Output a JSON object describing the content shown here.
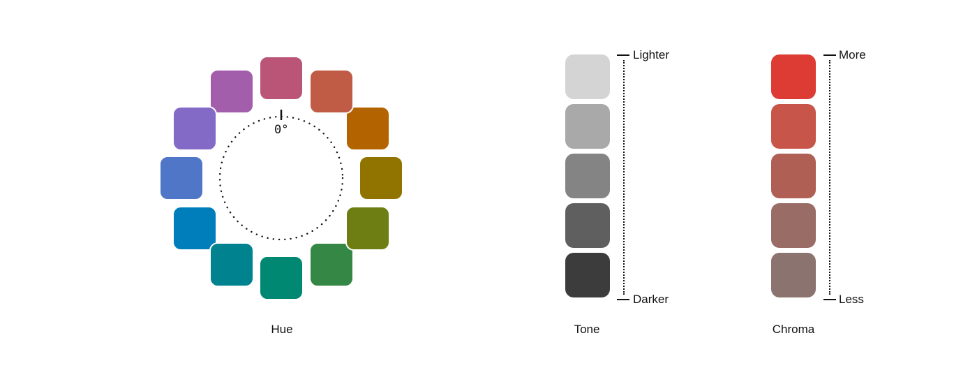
{
  "hue": {
    "caption": "Hue",
    "zero_label": "0°",
    "swatches": [
      {
        "name": "red-pink",
        "color": "#BA5577"
      },
      {
        "name": "red-orange",
        "color": "#C05B45"
      },
      {
        "name": "orange",
        "color": "#B36400"
      },
      {
        "name": "olive-yellow",
        "color": "#917400"
      },
      {
        "name": "olive-green",
        "color": "#6E7E13"
      },
      {
        "name": "green",
        "color": "#348744"
      },
      {
        "name": "teal-green",
        "color": "#008873"
      },
      {
        "name": "teal",
        "color": "#00838F"
      },
      {
        "name": "blue",
        "color": "#007EBB"
      },
      {
        "name": "periwinkle",
        "color": "#5077C7"
      },
      {
        "name": "violet",
        "color": "#836AC6"
      },
      {
        "name": "purple",
        "color": "#A25EAA"
      }
    ]
  },
  "tone": {
    "caption": "Tone",
    "top_label": "Lighter",
    "bottom_label": "Darker",
    "swatches": [
      "#D4D4D4",
      "#A9A9A9",
      "#848484",
      "#5F5F5F",
      "#3C3C3C"
    ]
  },
  "chroma": {
    "caption": "Chroma",
    "top_label": "More",
    "bottom_label": "Less",
    "swatches": [
      "#DD3C34",
      "#C75549",
      "#B05F54",
      "#9A6C66",
      "#8B7370"
    ]
  }
}
